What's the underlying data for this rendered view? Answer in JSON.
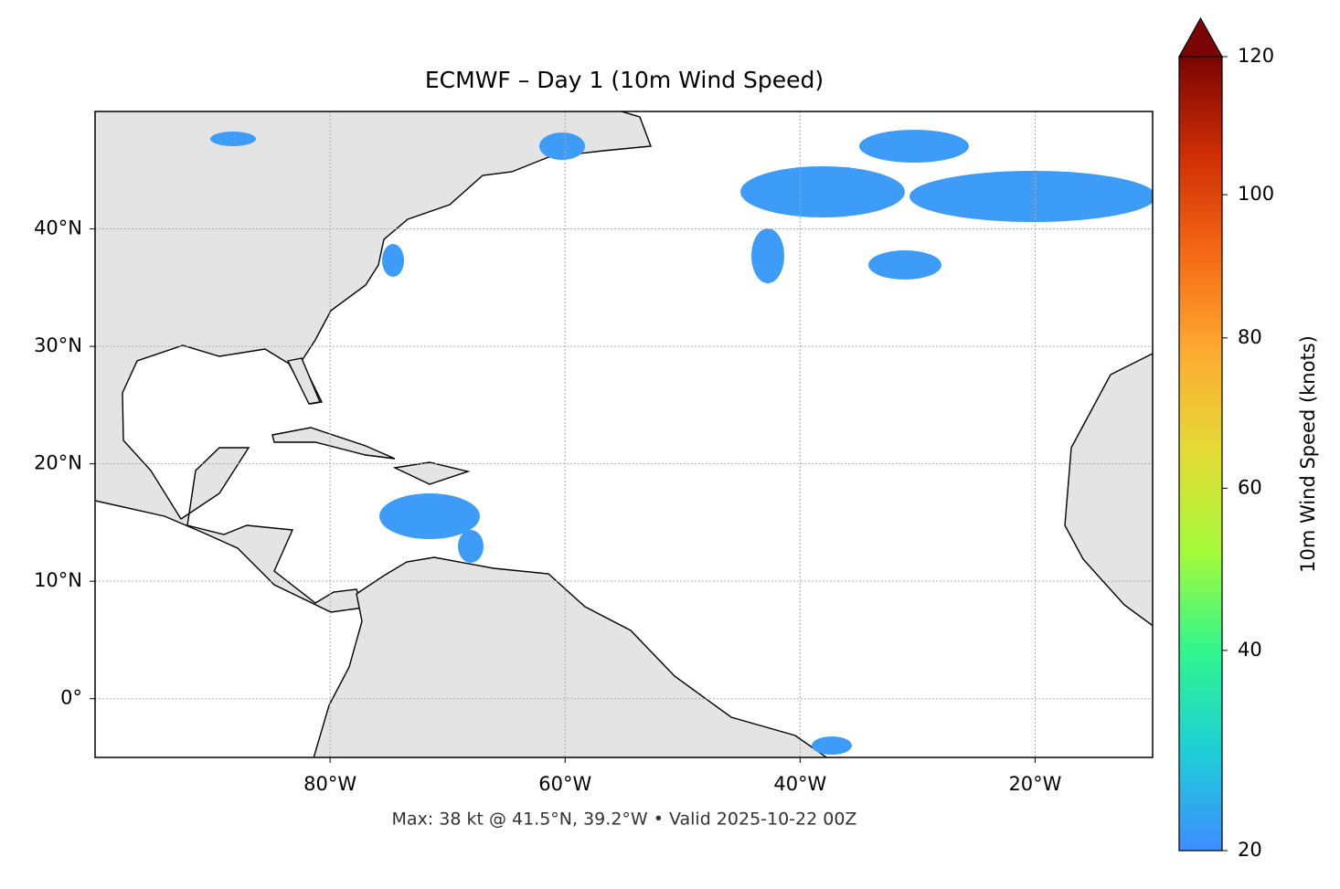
{
  "chart_data": {
    "type": "map",
    "title": "ECMWF – Day 1 (10m Wind Speed)",
    "footer": "Max: 38 kt @ 41.5°N, 39.2°W • Valid 2025-10-22 00Z",
    "xlim": [
      -100,
      -10
    ],
    "ylim": [
      -5,
      50
    ],
    "xticks": [
      {
        "value": -80,
        "label": "80°W"
      },
      {
        "value": -60,
        "label": "60°W"
      },
      {
        "value": -40,
        "label": "40°W"
      },
      {
        "value": -20,
        "label": "20°W"
      }
    ],
    "yticks": [
      {
        "value": 0,
        "label": "0°"
      },
      {
        "value": 10,
        "label": "10°N"
      },
      {
        "value": 20,
        "label": "20°N"
      },
      {
        "value": 30,
        "label": "30°N"
      },
      {
        "value": 40,
        "label": "40°N"
      }
    ],
    "grid": true,
    "colorbar": {
      "label": "10m Wind Speed (knots)",
      "lim": [
        20,
        120
      ],
      "ticks": [
        20,
        40,
        60,
        80,
        100,
        120
      ],
      "colors": [
        "#3e8cff",
        "#1ecfd6",
        "#2ff58e",
        "#a4fb3a",
        "#e3dc37",
        "#fdac33",
        "#f56a16",
        "#cf2e05",
        "#7a0403"
      ]
    }
  }
}
